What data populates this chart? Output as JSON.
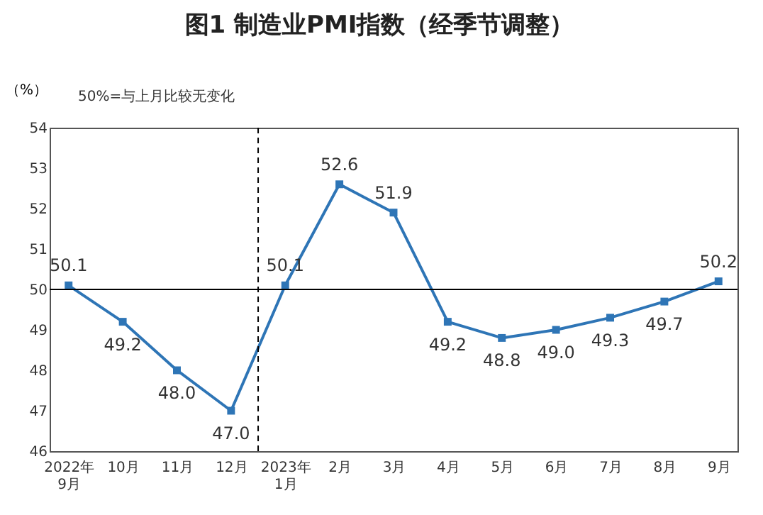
{
  "chart_data": {
    "type": "line",
    "title": "图1  制造业PMI指数（经季节调整）",
    "ylabel": "（%）",
    "annotations": [
      "50%=与上月比较无变化"
    ],
    "categories": [
      "2022年\n9月",
      "10月",
      "11月",
      "12月",
      "2023年\n1月",
      "2月",
      "3月",
      "4月",
      "5月",
      "6月",
      "7月",
      "8月",
      "9月"
    ],
    "series": [
      {
        "color": "#2e75b6",
        "values": [
          50.1,
          49.2,
          48.0,
          47.0,
          50.1,
          52.6,
          51.9,
          49.2,
          48.8,
          49.0,
          49.3,
          49.7,
          50.2
        ],
        "value_labels": [
          "50.1",
          "49.2",
          "48.0",
          "47.0",
          "50.1",
          "52.6",
          "51.9",
          "49.2",
          "48.8",
          "49.0",
          "49.3",
          "49.7",
          "50.2"
        ]
      }
    ],
    "ylim": [
      46,
      54
    ],
    "yticks": [
      46,
      47,
      48,
      49,
      50,
      51,
      52,
      53,
      54
    ],
    "ref_lines": [
      {
        "axis": "y",
        "value": 50,
        "color": "#000000",
        "line_style": "solid"
      },
      {
        "axis": "x",
        "value": "2023年\n1月",
        "color": "#000000",
        "line_style": "dashed"
      }
    ],
    "marker": "square",
    "grid": false
  }
}
